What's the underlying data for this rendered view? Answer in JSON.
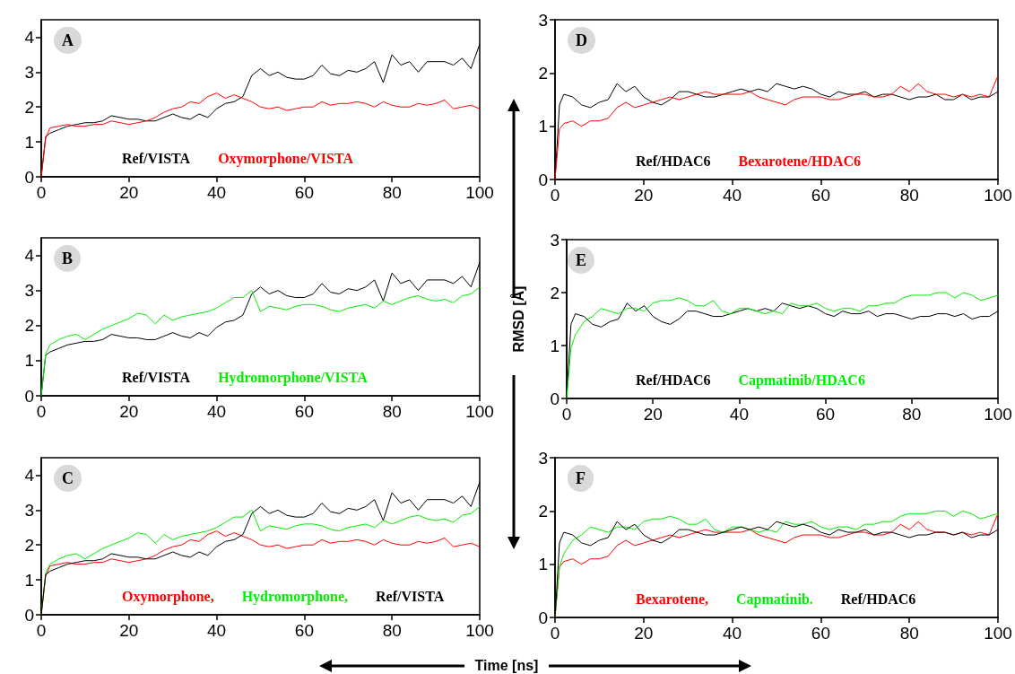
{
  "chart_data": [
    {
      "type": "line",
      "title": "A",
      "xlim": [
        0,
        100
      ],
      "xticks": [
        0,
        20,
        40,
        60,
        80,
        100
      ],
      "ylim": [
        0,
        4.5
      ],
      "yticks": [
        0,
        1,
        2,
        3,
        4
      ],
      "grid": false,
      "legend": "bottom",
      "x": [
        0,
        1,
        2,
        4,
        6,
        8,
        10,
        12,
        14,
        16,
        18,
        20,
        22,
        24,
        26,
        28,
        30,
        32,
        34,
        36,
        38,
        40,
        42,
        44,
        46,
        48,
        50,
        52,
        54,
        56,
        58,
        60,
        62,
        64,
        66,
        68,
        70,
        72,
        74,
        76,
        78,
        80,
        82,
        84,
        86,
        88,
        90,
        92,
        94,
        96,
        98,
        100
      ],
      "series": [
        {
          "name": "Ref/VISTA",
          "color": "#000000",
          "values": [
            0,
            1.15,
            1.25,
            1.35,
            1.45,
            1.5,
            1.55,
            1.55,
            1.6,
            1.75,
            1.7,
            1.65,
            1.65,
            1.6,
            1.6,
            1.7,
            1.8,
            1.7,
            1.65,
            1.8,
            1.7,
            1.95,
            2.1,
            2.15,
            2.3,
            2.9,
            3.1,
            2.9,
            3.0,
            2.85,
            2.8,
            2.8,
            2.9,
            3.2,
            2.95,
            2.9,
            3.05,
            3.0,
            3.1,
            3.3,
            2.7,
            3.5,
            3.2,
            3.3,
            3.0,
            3.3,
            3.3,
            3.3,
            3.2,
            3.4,
            3.1,
            3.8
          ]
        },
        {
          "name": "Oxymorphone/VISTA",
          "color": "#ff0000",
          "values": [
            0,
            1.1,
            1.4,
            1.45,
            1.5,
            1.45,
            1.45,
            1.5,
            1.5,
            1.6,
            1.55,
            1.5,
            1.55,
            1.6,
            1.7,
            1.85,
            1.95,
            2.0,
            2.15,
            2.1,
            2.3,
            2.4,
            2.25,
            2.35,
            2.25,
            2.15,
            2.0,
            1.95,
            2.0,
            1.9,
            1.95,
            2.0,
            2.0,
            2.15,
            2.05,
            2.1,
            2.1,
            2.15,
            2.1,
            2.0,
            2.15,
            2.05,
            2.0,
            2.0,
            2.1,
            2.05,
            2.1,
            2.2,
            1.95,
            2.0,
            2.05,
            1.95
          ]
        }
      ]
    },
    {
      "type": "line",
      "title": "B",
      "xlim": [
        0,
        100
      ],
      "xticks": [
        0,
        20,
        40,
        60,
        80,
        100
      ],
      "ylim": [
        0,
        4.5
      ],
      "yticks": [
        0,
        1,
        2,
        3,
        4
      ],
      "grid": false,
      "legend": "bottom",
      "x": [
        0,
        1,
        2,
        4,
        6,
        8,
        10,
        12,
        14,
        16,
        18,
        20,
        22,
        24,
        26,
        28,
        30,
        32,
        34,
        36,
        38,
        40,
        42,
        44,
        46,
        48,
        50,
        52,
        54,
        56,
        58,
        60,
        62,
        64,
        66,
        68,
        70,
        72,
        74,
        76,
        78,
        80,
        82,
        84,
        86,
        88,
        90,
        92,
        94,
        96,
        98,
        100
      ],
      "series": [
        {
          "name": "Ref/VISTA",
          "color": "#000000",
          "values": [
            0,
            1.15,
            1.25,
            1.35,
            1.45,
            1.5,
            1.55,
            1.55,
            1.6,
            1.75,
            1.7,
            1.65,
            1.65,
            1.6,
            1.6,
            1.7,
            1.8,
            1.7,
            1.65,
            1.8,
            1.7,
            1.95,
            2.1,
            2.15,
            2.3,
            2.9,
            3.1,
            2.9,
            3.0,
            2.85,
            2.8,
            2.8,
            2.9,
            3.2,
            2.95,
            2.9,
            3.05,
            3.0,
            3.1,
            3.3,
            2.7,
            3.5,
            3.2,
            3.3,
            3.0,
            3.3,
            3.3,
            3.3,
            3.2,
            3.4,
            3.1,
            3.8
          ]
        },
        {
          "name": "Hydromorphone/VISTA",
          "color": "#00ee00",
          "values": [
            0,
            1.2,
            1.45,
            1.6,
            1.7,
            1.75,
            1.6,
            1.75,
            1.9,
            2.0,
            2.1,
            2.2,
            2.35,
            2.3,
            2.05,
            2.3,
            2.15,
            2.25,
            2.3,
            2.35,
            2.4,
            2.5,
            2.65,
            2.8,
            2.8,
            3.0,
            2.4,
            2.55,
            2.5,
            2.45,
            2.55,
            2.6,
            2.6,
            2.55,
            2.45,
            2.4,
            2.5,
            2.55,
            2.6,
            2.5,
            2.7,
            2.6,
            2.7,
            2.8,
            2.85,
            2.75,
            2.7,
            2.75,
            2.65,
            2.85,
            2.9,
            3.1
          ]
        }
      ]
    },
    {
      "type": "line",
      "title": "C",
      "xlim": [
        0,
        100
      ],
      "xticks": [
        0,
        20,
        40,
        60,
        80,
        100
      ],
      "ylim": [
        0,
        4.5
      ],
      "yticks": [
        0,
        1,
        2,
        3,
        4
      ],
      "grid": false,
      "legend": "bottom",
      "x": [
        0,
        1,
        2,
        4,
        6,
        8,
        10,
        12,
        14,
        16,
        18,
        20,
        22,
        24,
        26,
        28,
        30,
        32,
        34,
        36,
        38,
        40,
        42,
        44,
        46,
        48,
        50,
        52,
        54,
        56,
        58,
        60,
        62,
        64,
        66,
        68,
        70,
        72,
        74,
        76,
        78,
        80,
        82,
        84,
        86,
        88,
        90,
        92,
        94,
        96,
        98,
        100
      ],
      "series": [
        {
          "name": "Oxymorphone,",
          "color": "#ff0000",
          "values": [
            0,
            1.1,
            1.4,
            1.45,
            1.5,
            1.45,
            1.45,
            1.5,
            1.5,
            1.6,
            1.55,
            1.5,
            1.55,
            1.6,
            1.7,
            1.85,
            1.95,
            2.0,
            2.15,
            2.1,
            2.3,
            2.4,
            2.25,
            2.35,
            2.25,
            2.15,
            2.0,
            1.95,
            2.0,
            1.9,
            1.95,
            2.0,
            2.0,
            2.15,
            2.05,
            2.1,
            2.1,
            2.15,
            2.1,
            2.0,
            2.15,
            2.05,
            2.0,
            2.0,
            2.1,
            2.05,
            2.1,
            2.2,
            1.95,
            2.0,
            2.05,
            1.95
          ]
        },
        {
          "name": "Hydromorphone,",
          "color": "#00ee00",
          "values": [
            0,
            1.2,
            1.45,
            1.6,
            1.7,
            1.75,
            1.6,
            1.75,
            1.9,
            2.0,
            2.1,
            2.2,
            2.35,
            2.3,
            2.05,
            2.3,
            2.15,
            2.25,
            2.3,
            2.35,
            2.4,
            2.5,
            2.65,
            2.8,
            2.8,
            3.0,
            2.4,
            2.55,
            2.5,
            2.45,
            2.55,
            2.6,
            2.6,
            2.55,
            2.45,
            2.4,
            2.5,
            2.55,
            2.6,
            2.5,
            2.7,
            2.6,
            2.7,
            2.8,
            2.85,
            2.75,
            2.7,
            2.75,
            2.65,
            2.85,
            2.9,
            3.1
          ]
        },
        {
          "name": "Ref/VISTA",
          "color": "#000000",
          "values": [
            0,
            1.15,
            1.25,
            1.35,
            1.45,
            1.5,
            1.55,
            1.55,
            1.6,
            1.75,
            1.7,
            1.65,
            1.65,
            1.6,
            1.6,
            1.7,
            1.8,
            1.7,
            1.65,
            1.8,
            1.7,
            1.95,
            2.1,
            2.15,
            2.3,
            2.9,
            3.1,
            2.9,
            3.0,
            2.85,
            2.8,
            2.8,
            2.9,
            3.2,
            2.95,
            2.9,
            3.05,
            3.0,
            3.1,
            3.3,
            2.7,
            3.5,
            3.2,
            3.3,
            3.0,
            3.3,
            3.3,
            3.3,
            3.2,
            3.4,
            3.1,
            3.8
          ]
        }
      ]
    },
    {
      "type": "line",
      "title": "D",
      "xlim": [
        0,
        100
      ],
      "xticks": [
        0,
        20,
        40,
        60,
        80,
        100
      ],
      "ylim": [
        0,
        3
      ],
      "yticks": [
        0,
        1,
        2,
        3
      ],
      "grid": false,
      "legend": "bottom",
      "x": [
        0,
        1,
        2,
        4,
        6,
        8,
        10,
        12,
        14,
        16,
        18,
        20,
        22,
        24,
        26,
        28,
        30,
        32,
        34,
        36,
        38,
        40,
        42,
        44,
        46,
        48,
        50,
        52,
        54,
        56,
        58,
        60,
        62,
        64,
        66,
        68,
        70,
        72,
        74,
        76,
        78,
        80,
        82,
        84,
        86,
        88,
        90,
        92,
        94,
        96,
        98,
        100
      ],
      "series": [
        {
          "name": "Ref/HDAC6",
          "color": "#000000",
          "values": [
            0,
            1.4,
            1.6,
            1.55,
            1.4,
            1.35,
            1.45,
            1.5,
            1.8,
            1.65,
            1.75,
            1.55,
            1.45,
            1.4,
            1.5,
            1.65,
            1.65,
            1.6,
            1.55,
            1.55,
            1.6,
            1.65,
            1.7,
            1.65,
            1.7,
            1.65,
            1.8,
            1.75,
            1.7,
            1.75,
            1.7,
            1.6,
            1.55,
            1.65,
            1.6,
            1.6,
            1.65,
            1.55,
            1.6,
            1.6,
            1.55,
            1.5,
            1.55,
            1.55,
            1.6,
            1.5,
            1.5,
            1.6,
            1.5,
            1.55,
            1.55,
            1.65
          ]
        },
        {
          "name": "Bexarotene/HDAC6",
          "color": "#ff0000",
          "values": [
            0,
            0.95,
            1.05,
            1.1,
            1.0,
            1.1,
            1.1,
            1.15,
            1.35,
            1.45,
            1.35,
            1.4,
            1.45,
            1.5,
            1.55,
            1.5,
            1.55,
            1.6,
            1.65,
            1.6,
            1.6,
            1.6,
            1.6,
            1.65,
            1.55,
            1.5,
            1.45,
            1.4,
            1.5,
            1.55,
            1.55,
            1.55,
            1.5,
            1.5,
            1.55,
            1.6,
            1.6,
            1.55,
            1.55,
            1.6,
            1.75,
            1.65,
            1.8,
            1.65,
            1.6,
            1.6,
            1.55,
            1.6,
            1.55,
            1.6,
            1.55,
            1.95
          ]
        }
      ]
    },
    {
      "type": "line",
      "title": "E",
      "ylabel": "RMSD [Å]",
      "xlim": [
        0,
        100
      ],
      "xticks": [
        0,
        20,
        40,
        60,
        80,
        100
      ],
      "ylim": [
        0,
        3
      ],
      "yticks": [
        0,
        1,
        2,
        3
      ],
      "grid": false,
      "legend": "bottom",
      "x": [
        0,
        1,
        2,
        4,
        6,
        8,
        10,
        12,
        14,
        16,
        18,
        20,
        22,
        24,
        26,
        28,
        30,
        32,
        34,
        36,
        38,
        40,
        42,
        44,
        46,
        48,
        50,
        52,
        54,
        56,
        58,
        60,
        62,
        64,
        66,
        68,
        70,
        72,
        74,
        76,
        78,
        80,
        82,
        84,
        86,
        88,
        90,
        92,
        94,
        96,
        98,
        100
      ],
      "series": [
        {
          "name": "Ref/HDAC6",
          "color": "#000000",
          "values": [
            0,
            1.4,
            1.6,
            1.55,
            1.4,
            1.35,
            1.45,
            1.5,
            1.8,
            1.65,
            1.75,
            1.55,
            1.45,
            1.4,
            1.5,
            1.65,
            1.65,
            1.6,
            1.55,
            1.55,
            1.6,
            1.65,
            1.7,
            1.65,
            1.7,
            1.65,
            1.8,
            1.75,
            1.7,
            1.75,
            1.7,
            1.6,
            1.55,
            1.65,
            1.6,
            1.6,
            1.65,
            1.55,
            1.6,
            1.6,
            1.55,
            1.5,
            1.55,
            1.55,
            1.6,
            1.6,
            1.55,
            1.6,
            1.5,
            1.55,
            1.55,
            1.65
          ]
        },
        {
          "name": "Capmatinib/HDAC6",
          "color": "#00ee00",
          "values": [
            0,
            0.95,
            1.2,
            1.45,
            1.55,
            1.7,
            1.65,
            1.6,
            1.7,
            1.7,
            1.65,
            1.8,
            1.85,
            1.85,
            1.9,
            1.85,
            1.75,
            1.75,
            1.85,
            1.65,
            1.6,
            1.7,
            1.7,
            1.65,
            1.6,
            1.65,
            1.6,
            1.8,
            1.75,
            1.75,
            1.8,
            1.7,
            1.65,
            1.7,
            1.7,
            1.65,
            1.75,
            1.75,
            1.8,
            1.8,
            1.9,
            1.95,
            1.95,
            1.95,
            2.0,
            2.0,
            1.9,
            2.0,
            1.95,
            1.85,
            1.9,
            1.95
          ]
        }
      ]
    },
    {
      "type": "line",
      "title": "F",
      "xlabel": "Time [ns]",
      "xlim": [
        0,
        100
      ],
      "xticks": [
        0,
        20,
        40,
        60,
        80,
        100
      ],
      "ylim": [
        0,
        3
      ],
      "yticks": [
        0,
        1,
        2,
        3
      ],
      "grid": false,
      "legend": "bottom",
      "x": [
        0,
        1,
        2,
        4,
        6,
        8,
        10,
        12,
        14,
        16,
        18,
        20,
        22,
        24,
        26,
        28,
        30,
        32,
        34,
        36,
        38,
        40,
        42,
        44,
        46,
        48,
        50,
        52,
        54,
        56,
        58,
        60,
        62,
        64,
        66,
        68,
        70,
        72,
        74,
        76,
        78,
        80,
        82,
        84,
        86,
        88,
        90,
        92,
        94,
        96,
        98,
        100
      ],
      "series": [
        {
          "name": "Bexarotene,",
          "color": "#ff0000",
          "values": [
            0,
            0.95,
            1.05,
            1.1,
            1.0,
            1.1,
            1.1,
            1.15,
            1.35,
            1.45,
            1.35,
            1.4,
            1.45,
            1.5,
            1.55,
            1.5,
            1.55,
            1.6,
            1.65,
            1.6,
            1.6,
            1.6,
            1.6,
            1.65,
            1.55,
            1.5,
            1.45,
            1.4,
            1.5,
            1.55,
            1.55,
            1.55,
            1.5,
            1.5,
            1.55,
            1.6,
            1.6,
            1.55,
            1.55,
            1.6,
            1.75,
            1.65,
            1.8,
            1.65,
            1.6,
            1.6,
            1.55,
            1.6,
            1.55,
            1.6,
            1.55,
            1.95
          ]
        },
        {
          "name": "Capmatinib.",
          "color": "#00ee00",
          "values": [
            0,
            0.95,
            1.2,
            1.45,
            1.55,
            1.7,
            1.65,
            1.6,
            1.7,
            1.7,
            1.65,
            1.8,
            1.85,
            1.85,
            1.9,
            1.85,
            1.75,
            1.75,
            1.85,
            1.65,
            1.6,
            1.7,
            1.7,
            1.65,
            1.6,
            1.65,
            1.6,
            1.8,
            1.75,
            1.75,
            1.8,
            1.7,
            1.65,
            1.7,
            1.7,
            1.65,
            1.75,
            1.75,
            1.8,
            1.8,
            1.9,
            1.95,
            1.95,
            1.95,
            2.0,
            2.0,
            1.9,
            2.0,
            1.95,
            1.85,
            1.9,
            1.95
          ]
        },
        {
          "name": "Ref/HDAC6",
          "color": "#000000",
          "values": [
            0,
            1.4,
            1.6,
            1.55,
            1.4,
            1.35,
            1.45,
            1.5,
            1.8,
            1.65,
            1.75,
            1.55,
            1.45,
            1.4,
            1.5,
            1.65,
            1.65,
            1.6,
            1.55,
            1.55,
            1.6,
            1.65,
            1.7,
            1.65,
            1.7,
            1.65,
            1.8,
            1.75,
            1.7,
            1.75,
            1.7,
            1.6,
            1.55,
            1.65,
            1.6,
            1.6,
            1.65,
            1.55,
            1.6,
            1.6,
            1.55,
            1.5,
            1.55,
            1.55,
            1.6,
            1.6,
            1.55,
            1.6,
            1.5,
            1.55,
            1.55,
            1.65
          ]
        }
      ]
    }
  ]
}
